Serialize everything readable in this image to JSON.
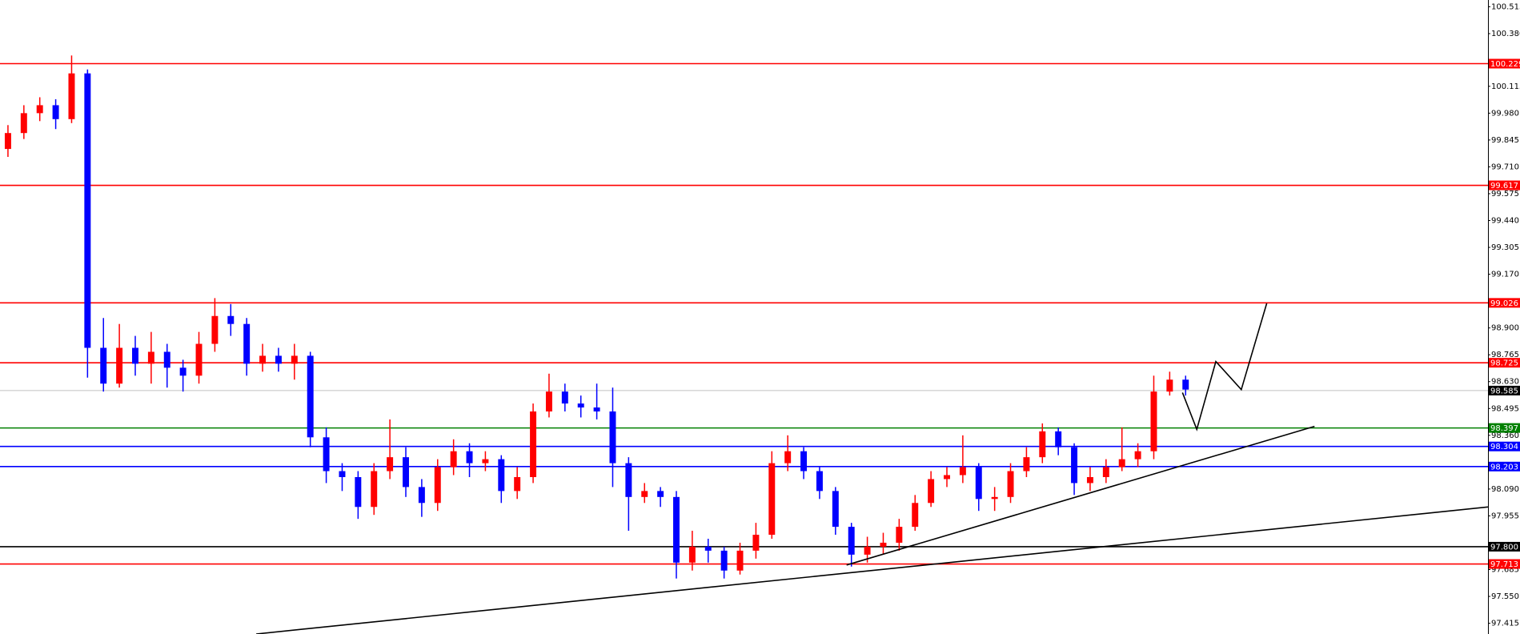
{
  "chart_data": {
    "type": "candlestick",
    "x": [
      0,
      1,
      2,
      3,
      4,
      5,
      6,
      7,
      8,
      9,
      10,
      11,
      12,
      13,
      14,
      15,
      16,
      17,
      18,
      19,
      20,
      21,
      22,
      23,
      24,
      25,
      26,
      27,
      28,
      29,
      30,
      31,
      32,
      33,
      34,
      35,
      36,
      37,
      38,
      39,
      40,
      41,
      42,
      43,
      44,
      45,
      46,
      47,
      48,
      49,
      50,
      51,
      52,
      53,
      54,
      55,
      56,
      57,
      58,
      59,
      60,
      61,
      62,
      63,
      64,
      65,
      66,
      67,
      68,
      69,
      70,
      71,
      72,
      73,
      74
    ],
    "open": [
      99.8,
      99.88,
      99.98,
      100.02,
      99.95,
      100.18,
      98.8,
      98.62,
      98.8,
      98.72,
      98.78,
      98.7,
      98.66,
      98.82,
      98.96,
      98.92,
      98.72,
      98.76,
      98.72,
      98.76,
      98.35,
      98.18,
      98.15,
      98.0,
      98.18,
      98.25,
      98.1,
      98.02,
      98.2,
      98.28,
      98.22,
      98.24,
      98.08,
      98.15,
      98.48,
      98.58,
      98.52,
      98.5,
      98.48,
      98.22,
      98.05,
      98.08,
      98.05,
      97.72,
      97.8,
      97.78,
      97.68,
      97.78,
      97.86,
      98.22,
      98.28,
      98.18,
      98.08,
      97.9,
      97.76,
      97.8,
      97.82,
      97.9,
      98.02,
      98.14,
      98.16,
      98.2,
      98.04,
      98.05,
      98.18,
      98.25,
      98.38,
      98.3,
      98.12,
      98.15,
      98.2,
      98.24,
      98.28,
      98.58,
      98.64
    ],
    "high": [
      99.92,
      100.02,
      100.06,
      100.05,
      100.27,
      100.2,
      98.95,
      98.92,
      98.86,
      98.88,
      98.82,
      98.74,
      98.88,
      99.05,
      99.02,
      98.95,
      98.82,
      98.8,
      98.82,
      98.78,
      98.4,
      98.22,
      98.18,
      98.22,
      98.44,
      98.3,
      98.14,
      98.24,
      98.34,
      98.32,
      98.28,
      98.26,
      98.2,
      98.52,
      98.67,
      98.62,
      98.56,
      98.62,
      98.6,
      98.25,
      98.12,
      98.1,
      98.08,
      97.88,
      97.84,
      97.8,
      97.82,
      97.92,
      98.28,
      98.36,
      98.3,
      98.2,
      98.1,
      97.92,
      97.85,
      97.87,
      97.94,
      98.06,
      98.18,
      98.2,
      98.36,
      98.22,
      98.1,
      98.22,
      98.3,
      98.42,
      98.4,
      98.32,
      98.2,
      98.24,
      98.4,
      98.32,
      98.66,
      98.68,
      98.66
    ],
    "low": [
      99.76,
      99.85,
      99.94,
      99.9,
      99.93,
      98.65,
      98.58,
      98.6,
      98.66,
      98.62,
      98.6,
      98.58,
      98.62,
      98.78,
      98.86,
      98.66,
      98.68,
      98.68,
      98.64,
      98.3,
      98.12,
      98.08,
      97.94,
      97.96,
      98.14,
      98.05,
      97.95,
      97.98,
      98.16,
      98.15,
      98.18,
      98.02,
      98.04,
      98.12,
      98.45,
      98.48,
      98.45,
      98.44,
      98.1,
      97.88,
      98.02,
      98.0,
      97.64,
      97.68,
      97.72,
      97.64,
      97.66,
      97.74,
      97.84,
      98.18,
      98.14,
      98.04,
      97.86,
      97.7,
      97.72,
      97.76,
      97.78,
      97.88,
      98.0,
      98.1,
      98.12,
      97.98,
      97.98,
      98.02,
      98.15,
      98.22,
      98.26,
      98.06,
      98.08,
      98.12,
      98.18,
      98.2,
      98.24,
      98.56,
      98.56
    ],
    "close": [
      99.88,
      99.98,
      100.02,
      99.95,
      100.18,
      98.8,
      98.62,
      98.8,
      98.72,
      98.78,
      98.7,
      98.66,
      98.82,
      98.96,
      98.92,
      98.72,
      98.76,
      98.72,
      98.76,
      98.35,
      98.18,
      98.15,
      98.0,
      98.18,
      98.25,
      98.1,
      98.02,
      98.2,
      98.28,
      98.22,
      98.24,
      98.08,
      98.15,
      98.48,
      98.58,
      98.52,
      98.5,
      98.48,
      98.22,
      98.05,
      98.08,
      98.05,
      97.72,
      97.8,
      97.78,
      97.68,
      97.78,
      97.86,
      98.22,
      98.28,
      98.18,
      98.08,
      97.9,
      97.76,
      97.8,
      97.82,
      97.9,
      98.02,
      98.14,
      98.16,
      98.2,
      98.04,
      98.05,
      98.18,
      98.25,
      98.38,
      98.3,
      98.12,
      98.15,
      98.2,
      98.24,
      98.28,
      98.58,
      98.64,
      98.59
    ],
    "up_color": "#ff0000",
    "down_color": "#0000ff",
    "xlim": [
      -0.5,
      93
    ],
    "ylim": [
      97.361,
      100.549
    ],
    "yticks": [
      {
        "value": 100.515,
        "label": "100.515"
      },
      {
        "value": 100.38,
        "label": "100.380"
      },
      {
        "value": 100.115,
        "label": "100.115"
      },
      {
        "value": 99.98,
        "label": "99.980"
      },
      {
        "value": 99.845,
        "label": "99.845"
      },
      {
        "value": 99.71,
        "label": "99.710"
      },
      {
        "value": 99.575,
        "label": "99.575"
      },
      {
        "value": 99.44,
        "label": "99.440"
      },
      {
        "value": 99.305,
        "label": "99.305"
      },
      {
        "value": 99.17,
        "label": "99.170"
      },
      {
        "value": 98.9,
        "label": "98.900"
      },
      {
        "value": 98.765,
        "label": "98.765"
      },
      {
        "value": 98.63,
        "label": "98.630"
      },
      {
        "value": 98.495,
        "label": "98.495"
      },
      {
        "value": 98.36,
        "label": "98.360"
      },
      {
        "value": 98.09,
        "label": "98.090"
      },
      {
        "value": 97.955,
        "label": "97.955"
      },
      {
        "value": 97.685,
        "label": "97.685"
      },
      {
        "value": 97.55,
        "label": "97.550"
      },
      {
        "value": 97.415,
        "label": "97.415"
      }
    ],
    "levels": [
      {
        "value": 100.229,
        "label": "100.229",
        "color": "#ff0000"
      },
      {
        "value": 99.617,
        "label": "99.617",
        "color": "#ff0000"
      },
      {
        "value": 99.026,
        "label": "99.026",
        "color": "#ff0000"
      },
      {
        "value": 98.725,
        "label": "98.725",
        "color": "#ff0000"
      },
      {
        "value": 98.585,
        "label": "98.585",
        "color": "#c0c0c0"
      },
      {
        "value": 98.397,
        "label": "98.397",
        "color": "#008000"
      },
      {
        "value": 98.304,
        "label": "98.304",
        "color": "#0000ff"
      },
      {
        "value": 98.203,
        "label": "98.203",
        "color": "#0000ff"
      },
      {
        "value": 97.8,
        "label": "97.800",
        "color": "#000000"
      },
      {
        "value": 97.713,
        "label": "97.713",
        "color": "#ff0000"
      }
    ],
    "trendlines": [
      {
        "x": [
          15.6,
          93
        ],
        "values": [
          97.361,
          98.0
        ],
        "color": "#000000"
      },
      {
        "x": [
          52.7,
          82.1
        ],
        "values": [
          97.708,
          98.405
        ],
        "color": "#000000"
      },
      {
        "x": [
          73.8,
          74.7,
          75.9,
          77.5,
          79.1
        ],
        "values": [
          98.575,
          98.39,
          98.731,
          98.59,
          99.024
        ],
        "color": "#000000"
      }
    ]
  }
}
